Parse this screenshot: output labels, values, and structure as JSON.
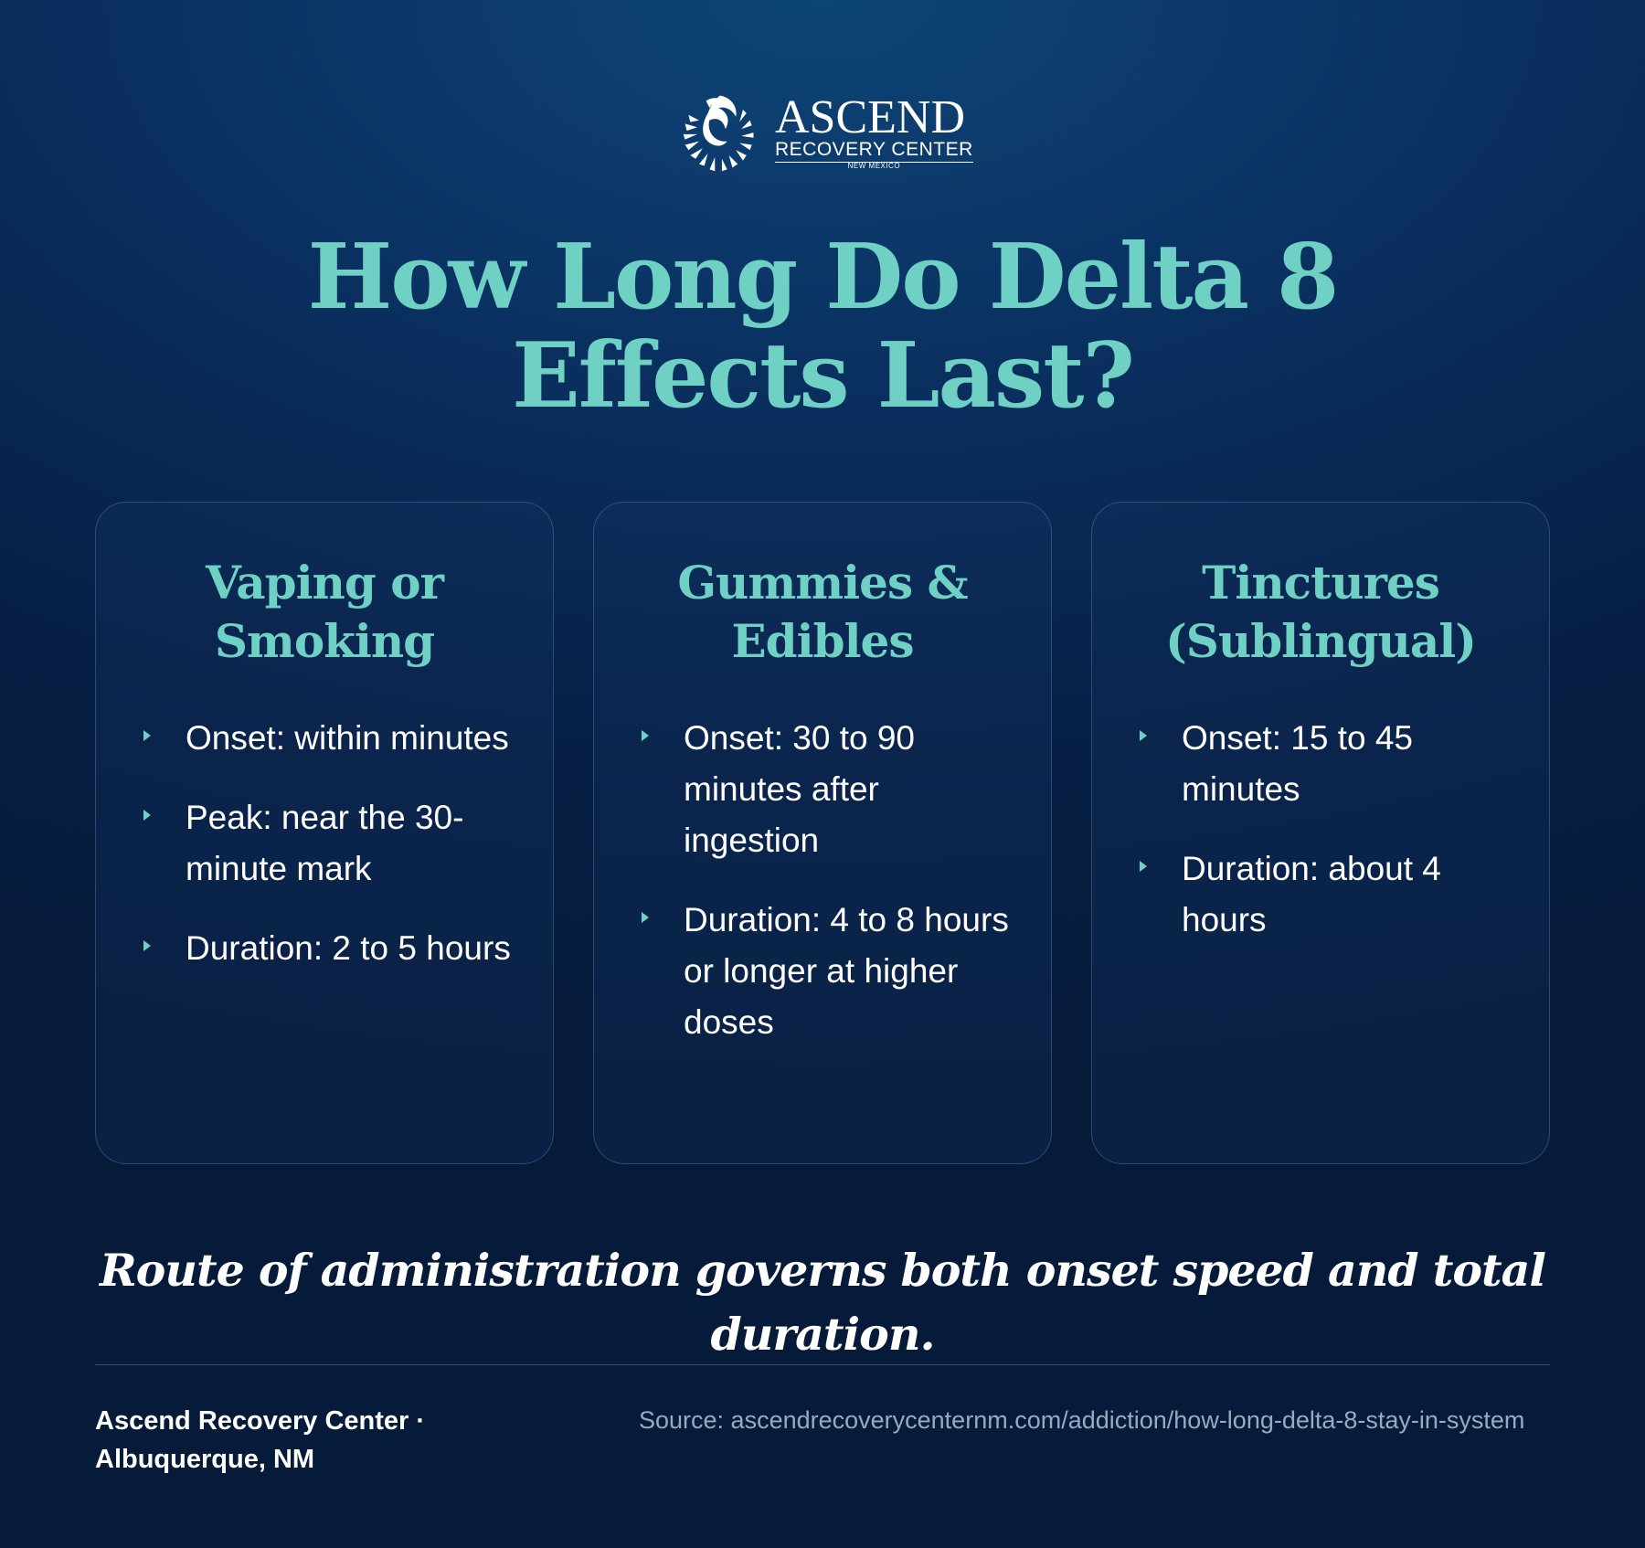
{
  "brand": {
    "name": "ASCEND",
    "subtitle": "RECOVERY CENTER",
    "region": "NEW MEXICO"
  },
  "title": "How Long Do Delta 8 Effects Last?",
  "cards": [
    {
      "title": "Vaping or Smoking",
      "items": [
        "Onset: within minutes",
        "Peak: near the 30-minute mark",
        "Duration: 2 to 5 hours"
      ]
    },
    {
      "title": "Gummies & Edibles",
      "items": [
        "Onset: 30 to 90 minutes after ingestion",
        "Duration: 4 to 8 hours or longer at higher doses"
      ]
    },
    {
      "title": "Tinctures (Sublingual)",
      "items": [
        "Onset: 15 to 45 minutes",
        "Duration: about 4 hours"
      ]
    }
  ],
  "tagline": "Route of administration governs both onset speed and total duration.",
  "footer": {
    "organization": "Ascend Recovery Center · Albuquerque, NM",
    "source": "Source: ascendrecoverycenternm.com/addiction/how-long-delta-8-stay-in-system"
  },
  "colors": {
    "accent": "#6fd0c4",
    "background": "#0a2a55",
    "text": "#ffffff",
    "muted": "#9aa9bd"
  },
  "icons": {
    "logo": "phoenix-logo-icon",
    "bullet": "chevron-right-icon"
  }
}
